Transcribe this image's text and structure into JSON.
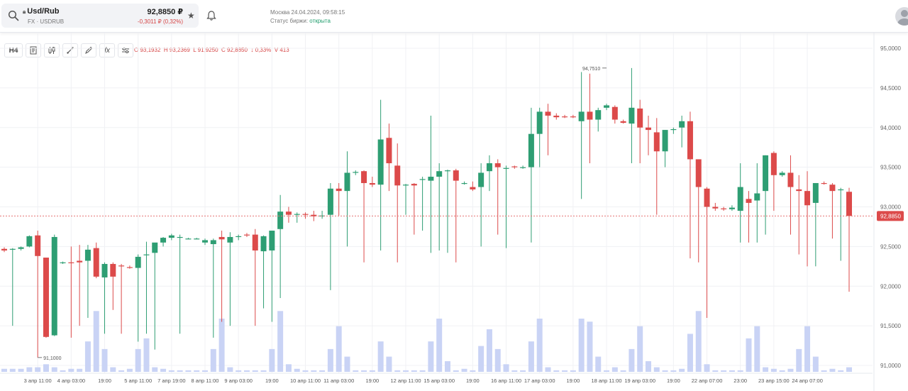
{
  "ticker": {
    "name": "Usd/Rub",
    "subtitle": "FX · USDRUB",
    "price": "92,8850 ₽",
    "change": "-0,3011 ₽ (0,32%)",
    "lock_icon": "lock-icon"
  },
  "market": {
    "datetime": "Москва 24.04.2024, 09:58:15",
    "status_label": "Статус биржи:",
    "status_value": "открыта",
    "status_color": "#1f9d6c"
  },
  "toolbar": {
    "timeframe": "H4",
    "icons": [
      "document-icon",
      "candles-icon",
      "line-tool-icon",
      "draw-icon",
      "function-icon",
      "settings-sliders-icon"
    ],
    "function_label": "fx"
  },
  "ohlc": {
    "o_label": "O",
    "o": "93,1932",
    "h_label": "H",
    "h": "93,2369",
    "l_label": "L",
    "l": "91,9250",
    "c_label": "C",
    "c": "92,8850",
    "change": "↓ 0,33%",
    "v_label": "V",
    "v": "413"
  },
  "chart_data": {
    "type": "candlestick",
    "y_ticks": [
      "95,0000",
      "94,5000",
      "94,0000",
      "93,5000",
      "93,0000",
      "92,5000",
      "92,0000",
      "91,5000",
      "91,0000"
    ],
    "y_tick_values": [
      95.0,
      94.5,
      94.0,
      93.5,
      93.0,
      92.5,
      92.0,
      91.5,
      91.0
    ],
    "ylim": [
      90.95,
      95.1
    ],
    "x_ticks": [
      {
        "label": "3 апр 11:00",
        "i": 4
      },
      {
        "label": "4 апр 03:00",
        "i": 8
      },
      {
        "label": "19:00",
        "i": 12
      },
      {
        "label": "5 апр 11:00",
        "i": 16
      },
      {
        "label": "7 апр 19:00",
        "i": 20
      },
      {
        "label": "8 апр 11:00",
        "i": 24
      },
      {
        "label": "9 апр 03:00",
        "i": 28
      },
      {
        "label": "19:00",
        "i": 32
      },
      {
        "label": "10 апр 11:00",
        "i": 36
      },
      {
        "label": "11 апр 03:00",
        "i": 40
      },
      {
        "label": "19:00",
        "i": 44
      },
      {
        "label": "12 апр 11:00",
        "i": 48
      },
      {
        "label": "15 апр 03:00",
        "i": 52
      },
      {
        "label": "19:00",
        "i": 56
      },
      {
        "label": "16 апр 11:00",
        "i": 60
      },
      {
        "label": "17 апр 03:00",
        "i": 64
      },
      {
        "label": "19:00",
        "i": 68
      },
      {
        "label": "18 апр 11:00",
        "i": 72
      },
      {
        "label": "19 апр 03:00",
        "i": 76
      },
      {
        "label": "19:00",
        "i": 80
      },
      {
        "label": "22 апр 07:00",
        "i": 84
      },
      {
        "label": "23:00",
        "i": 88
      },
      {
        "label": "23 апр 15:00",
        "i": 92
      },
      {
        "label": "24 апр 07:00",
        "i": 96
      }
    ],
    "current_price": 92.885,
    "current_price_label": "92,8850",
    "annotations": [
      {
        "label": "94,7510",
        "i": 72,
        "price": 94.751,
        "type": "high"
      },
      {
        "label": "91,1000",
        "i": 4,
        "price": 91.1,
        "type": "low"
      }
    ],
    "colors": {
      "up": "#2e9e73",
      "down": "#dc4a4a",
      "volume": "#c9d3f5",
      "price_line": "#e57373"
    },
    "candles": [
      [
        92.47,
        92.49,
        92.43,
        92.45,
        0.02
      ],
      [
        92.46,
        92.48,
        91.5,
        92.47,
        0.02
      ],
      [
        92.47,
        92.5,
        92.45,
        92.49,
        0.02
      ],
      [
        92.5,
        92.64,
        92.49,
        92.63,
        0.03
      ],
      [
        92.64,
        92.7,
        91.1,
        92.38,
        0.03
      ],
      [
        92.36,
        92.36,
        91.35,
        91.36,
        0.05
      ],
      [
        91.38,
        92.65,
        91.37,
        92.62,
        0.03
      ],
      [
        92.3,
        92.31,
        92.28,
        92.3,
        0.01
      ],
      [
        92.3,
        92.5,
        91.35,
        92.29,
        0.02
      ],
      [
        92.32,
        92.52,
        91.5,
        92.3,
        0.02
      ],
      [
        92.32,
        92.52,
        91.6,
        92.46,
        0.2
      ],
      [
        92.48,
        92.55,
        92.1,
        92.12,
        0.4
      ],
      [
        92.11,
        92.3,
        91.4,
        92.28,
        0.15
      ],
      [
        92.28,
        92.3,
        91.7,
        92.12,
        0.03
      ],
      [
        92.26,
        92.28,
        91.4,
        92.25,
        0.01
      ],
      [
        92.24,
        92.26,
        92.22,
        92.23,
        0.02
      ],
      [
        92.23,
        92.4,
        91.3,
        92.37,
        0.15
      ],
      [
        92.4,
        92.56,
        91.4,
        92.4,
        0.22
      ],
      [
        92.42,
        92.52,
        91.2,
        92.55,
        0.03
      ],
      [
        92.55,
        92.62,
        92.5,
        92.61,
        0.02
      ],
      [
        92.61,
        92.66,
        92.58,
        92.64,
        0.01
      ],
      [
        92.61,
        92.65,
        91.4,
        92.62,
        0.01
      ],
      [
        92.6,
        92.61,
        92.59,
        92.6,
        0.01
      ],
      [
        92.6,
        92.61,
        92.59,
        92.6,
        0.01
      ],
      [
        92.55,
        92.6,
        92.52,
        92.58,
        0.01
      ],
      [
        92.53,
        92.6,
        91.35,
        92.58,
        0.15
      ],
      [
        92.62,
        92.7,
        91.55,
        92.59,
        0.35
      ],
      [
        92.55,
        92.68,
        91.5,
        92.62,
        0.03
      ],
      [
        92.63,
        92.65,
        92.58,
        92.63,
        0.01
      ],
      [
        92.65,
        92.67,
        92.62,
        92.64,
        0.01
      ],
      [
        92.65,
        92.72,
        91.5,
        92.45,
        0.01
      ],
      [
        92.44,
        92.64,
        91.72,
        92.63,
        0.01
      ],
      [
        92.45,
        92.67,
        91.55,
        92.7,
        0.15
      ],
      [
        92.72,
        93.15,
        91.85,
        92.94,
        0.4
      ],
      [
        92.94,
        93.0,
        92.8,
        92.9,
        0.05
      ],
      [
        92.9,
        92.93,
        92.8,
        92.91,
        0.02
      ],
      [
        92.91,
        92.93,
        92.85,
        92.9,
        0.01
      ],
      [
        92.9,
        92.95,
        92.82,
        92.88,
        0.01
      ],
      [
        92.89,
        92.95,
        92.85,
        92.89,
        0.01
      ],
      [
        92.9,
        93.3,
        91.95,
        93.23,
        0.15
      ],
      [
        93.23,
        93.3,
        92.89,
        93.2,
        0.3
      ],
      [
        93.2,
        93.7,
        92.5,
        93.43,
        0.1
      ],
      [
        93.43,
        93.46,
        93.4,
        93.44,
        0.01
      ],
      [
        93.45,
        93.46,
        92.3,
        93.3,
        0.01
      ],
      [
        93.3,
        93.38,
        93.25,
        93.28,
        0.01
      ],
      [
        93.28,
        94.35,
        92.45,
        93.85,
        0.2
      ],
      [
        93.87,
        94.05,
        93.2,
        93.55,
        0.1
      ],
      [
        93.52,
        93.8,
        92.3,
        93.27,
        0.01
      ],
      [
        93.27,
        93.29,
        92.9,
        93.28,
        0.01
      ],
      [
        93.29,
        93.3,
        92.65,
        93.27,
        0.01
      ],
      [
        93.34,
        93.38,
        92.7,
        93.35,
        0.01
      ],
      [
        93.33,
        94.15,
        92.42,
        93.38,
        0.2
      ],
      [
        93.38,
        93.55,
        92.45,
        93.45,
        0.35
      ],
      [
        93.45,
        93.47,
        92.42,
        93.46,
        0.07
      ],
      [
        93.46,
        93.48,
        92.3,
        93.33,
        0.01
      ],
      [
        93.3,
        93.32,
        93.28,
        93.3,
        0.02
      ],
      [
        93.25,
        93.32,
        93.2,
        93.22,
        0.01
      ],
      [
        93.25,
        93.55,
        92.5,
        93.43,
        0.17
      ],
      [
        93.45,
        93.65,
        93.2,
        93.55,
        0.28
      ],
      [
        93.55,
        93.6,
        92.65,
        93.5,
        0.15
      ],
      [
        93.49,
        93.52,
        92.48,
        93.49,
        0.05
      ],
      [
        93.51,
        93.52,
        93.48,
        93.5,
        0.01
      ],
      [
        93.5,
        93.52,
        93.48,
        93.5,
        0.01
      ],
      [
        93.5,
        94.25,
        92.55,
        93.92,
        0.2
      ],
      [
        93.92,
        94.25,
        93.5,
        94.2,
        0.35
      ],
      [
        94.2,
        94.3,
        93.65,
        94.15,
        0.03
      ],
      [
        94.15,
        94.18,
        94.1,
        94.13,
        0.01
      ],
      [
        94.14,
        94.16,
        94.12,
        94.13,
        0.01
      ],
      [
        94.14,
        94.16,
        94.12,
        94.13,
        0.01
      ],
      [
        94.08,
        94.7,
        93.1,
        94.2,
        0.35
      ],
      [
        94.2,
        94.68,
        93.55,
        94.1,
        0.33
      ],
      [
        94.1,
        94.25,
        93.95,
        94.22,
        0.1
      ],
      [
        94.25,
        94.3,
        94.22,
        94.28,
        0.01
      ],
      [
        94.26,
        94.28,
        94.05,
        94.1,
        0.03
      ],
      [
        94.08,
        94.1,
        94.05,
        94.06,
        0.01
      ],
      [
        94.05,
        94.751,
        93.55,
        94.25,
        0.15
      ],
      [
        94.24,
        94.35,
        93.55,
        94.0,
        0.3
      ],
      [
        94.0,
        94.15,
        93.65,
        93.97,
        0.07
      ],
      [
        93.94,
        94.12,
        92.9,
        93.7,
        0.03
      ],
      [
        93.7,
        93.97,
        93.5,
        93.97,
        0.01
      ],
      [
        93.97,
        94.0,
        93.92,
        93.98,
        0.01
      ],
      [
        94.0,
        94.15,
        93.75,
        94.08,
        0.02
      ],
      [
        94.08,
        94.2,
        92.35,
        93.6,
        0.25
      ],
      [
        93.6,
        93.6,
        92.3,
        93.25,
        0.4
      ],
      [
        93.23,
        93.25,
        91.6,
        93.0,
        0.05
      ],
      [
        93.0,
        93.05,
        92.95,
        92.98,
        0.01
      ],
      [
        92.98,
        93.0,
        92.95,
        92.97,
        0.01
      ],
      [
        92.97,
        93.02,
        92.95,
        92.99,
        0.01
      ],
      [
        92.95,
        93.55,
        92.55,
        93.25,
        0.01
      ],
      [
        93.1,
        93.2,
        92.55,
        93.05,
        0.22
      ],
      [
        93.08,
        93.55,
        92.55,
        93.17,
        0.3
      ],
      [
        93.2,
        93.65,
        92.65,
        93.65,
        0.03
      ],
      [
        93.68,
        93.7,
        92.95,
        93.4,
        0.02
      ],
      [
        93.4,
        93.45,
        93.38,
        93.43,
        0.01
      ],
      [
        93.43,
        93.65,
        92.65,
        93.25,
        0.02
      ],
      [
        93.22,
        93.4,
        92.4,
        93.2,
        0.15
      ],
      [
        93.2,
        93.45,
        92.25,
        93.02,
        0.3
      ],
      [
        93.05,
        93.3,
        92.25,
        93.3,
        0.1
      ],
      [
        93.3,
        93.32,
        93.28,
        93.29,
        0.01
      ],
      [
        93.28,
        93.3,
        92.6,
        93.2,
        0.02
      ],
      [
        93.21,
        93.24,
        92.32,
        93.22,
        0.01
      ],
      [
        93.19,
        93.24,
        91.93,
        92.885,
        0.03
      ]
    ]
  }
}
